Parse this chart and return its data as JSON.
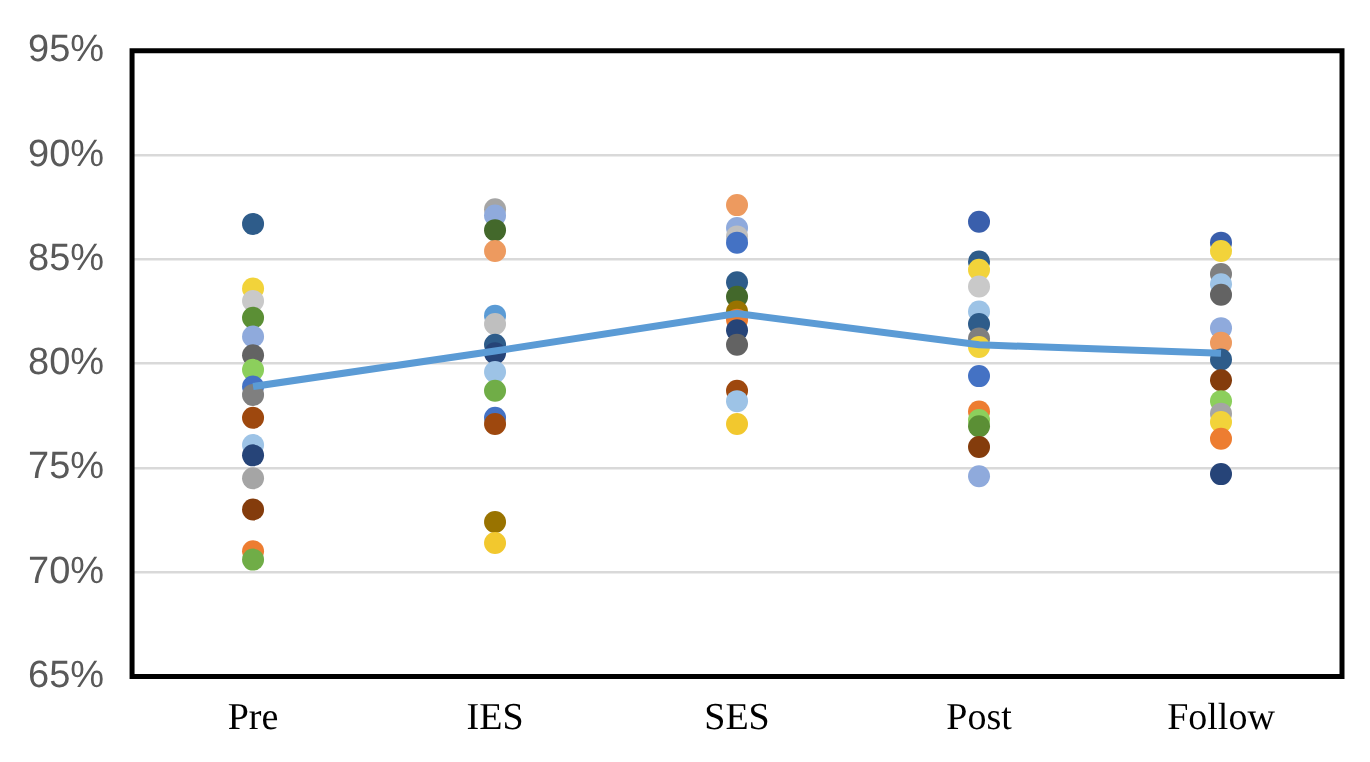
{
  "chart_data": {
    "type": "scatter",
    "categories": [
      "Pre",
      "IES",
      "SES",
      "Post",
      "Follow"
    ],
    "ylim": [
      65,
      95
    ],
    "yticks": [
      {
        "value": 65,
        "label": "65%"
      },
      {
        "value": 70,
        "label": "70%"
      },
      {
        "value": 75,
        "label": "75%"
      },
      {
        "value": 80,
        "label": "80%"
      },
      {
        "value": 85,
        "label": "85%"
      },
      {
        "value": 90,
        "label": "90%"
      },
      {
        "value": 95,
        "label": "95%"
      }
    ],
    "grid": "y",
    "legend": false,
    "marker": "circle",
    "series": [
      {
        "x": [
          "Pre",
          "Pre",
          "Pre",
          "Pre",
          "Pre",
          "Pre",
          "Pre",
          "Pre",
          "Pre",
          "Pre",
          "Pre",
          "Pre",
          "Pre",
          "Pre",
          "Pre",
          "Pre",
          "IES",
          "IES",
          "IES",
          "IES",
          "IES",
          "IES",
          "IES",
          "IES",
          "IES",
          "IES",
          "IES",
          "IES",
          "IES",
          "IES",
          "SES",
          "SES",
          "SES",
          "SES",
          "SES",
          "SES",
          "SES",
          "SES",
          "SES",
          "SES",
          "SES",
          "SES",
          "SES",
          "Post",
          "Post",
          "Post",
          "Post",
          "Post",
          "Post",
          "Post",
          "Post",
          "Post",
          "Post",
          "Post",
          "Post",
          "Post",
          "Post",
          "Follow",
          "Follow",
          "Follow",
          "Follow",
          "Follow",
          "Follow",
          "Follow",
          "Follow",
          "Follow",
          "Follow",
          "Follow",
          "Follow",
          "Follow",
          "Follow"
        ],
        "values": [
          86.7,
          83.6,
          83.0,
          82.2,
          81.3,
          80.4,
          79.7,
          78.9,
          78.5,
          77.4,
          76.1,
          75.6,
          74.5,
          73.0,
          71.0,
          70.6,
          87.4,
          87.1,
          86.4,
          85.4,
          82.3,
          81.9,
          80.9,
          80.5,
          79.6,
          78.7,
          77.4,
          77.1,
          72.4,
          71.4,
          87.6,
          86.5,
          86.1,
          85.8,
          83.9,
          83.2,
          82.5,
          82.1,
          81.6,
          80.9,
          78.7,
          78.2,
          77.1,
          86.8,
          84.9,
          84.5,
          83.7,
          82.5,
          81.9,
          81.2,
          80.8,
          79.4,
          77.7,
          77.3,
          77.0,
          76.0,
          74.6,
          85.8,
          85.4,
          84.3,
          83.8,
          83.3,
          81.7,
          81.0,
          80.2,
          79.2,
          78.2,
          77.6,
          77.2,
          76.4,
          74.7
        ],
        "colors": [
          "#2e5c8a",
          "#f2d33a",
          "#c9c9c9",
          "#5b8f35",
          "#8faadc",
          "#636363",
          "#8ccf5c",
          "#4472c4",
          "#7f7f7f",
          "#9e480e",
          "#9dc3e6",
          "#264478",
          "#a5a5a5",
          "#843c0c",
          "#ed7d31",
          "#70ad47",
          "#a5a5a5",
          "#8faadc",
          "#43682b",
          "#ed9a5f",
          "#5b9bd5",
          "#bfbfbf",
          "#2e5c8a",
          "#264478",
          "#9dc3e6",
          "#70ad47",
          "#4472c4",
          "#9e480e",
          "#997300",
          "#f2c82e",
          "#ed9a5f",
          "#8faadc",
          "#bfbfbf",
          "#4472c4",
          "#2e5c8a",
          "#43682b",
          "#997300",
          "#ed7d31",
          "#264478",
          "#636363",
          "#9e480e",
          "#9dc3e6",
          "#f2c82e",
          "#3a5fac",
          "#2e5c8a",
          "#f2d33a",
          "#c9c9c9",
          "#9dc3e6",
          "#2e5c8a",
          "#7f7f7f",
          "#f2d33a",
          "#4472c4",
          "#ed7d31",
          "#8ccf5c",
          "#5b8f35",
          "#843c0c",
          "#8faadc",
          "#3a5fac",
          "#f2d33a",
          "#7f7f7f",
          "#9dc3e6",
          "#636363",
          "#8faadc",
          "#ed9a5f",
          "#2e5c8a",
          "#843c0c",
          "#8ccf5c",
          "#a5a5a5",
          "#f2d33a",
          "#ed7d31",
          "#264478"
        ]
      },
      {
        "type": "line",
        "color": "#5b9bd5",
        "marker": "none",
        "values": [
          78.9,
          80.6,
          82.4,
          80.9,
          80.5
        ]
      }
    ]
  }
}
